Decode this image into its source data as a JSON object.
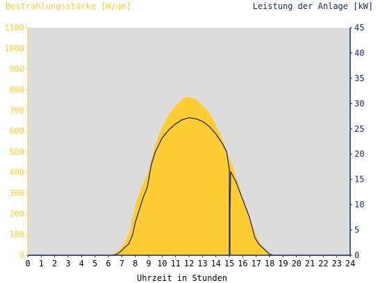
{
  "chart_data": {
    "type": "area",
    "y_left_label": "Bestrahlungsstärke [W/qm]",
    "y_right_label": "Leistung der Anlage [kW]",
    "xlabel": "Uhrzeit in Stunden",
    "xlim": [
      0,
      24
    ],
    "ylim_left": [
      0,
      1100
    ],
    "ylim_right": [
      0,
      45
    ],
    "x_ticks": [
      "0",
      "1",
      "2",
      "3",
      "4",
      "5",
      "6",
      "7",
      "8",
      "9",
      "10",
      "11",
      "12",
      "13",
      "14",
      "15",
      "16",
      "17",
      "18",
      "19",
      "20",
      "21",
      "22",
      "23",
      "24"
    ],
    "y_left_ticks": [
      "0",
      "100",
      "200",
      "300",
      "400",
      "500",
      "600",
      "700",
      "800",
      "900",
      "1000",
      "1100"
    ],
    "y_right_ticks": [
      "0",
      "5",
      "10",
      "15",
      "20",
      "25",
      "30",
      "35",
      "40",
      "45"
    ],
    "colors": {
      "plot_background": "#dcdcdc",
      "irradiance_fill": "#ffcc33",
      "power_line": "#1a2a6c",
      "left_axis": "#ffcc33",
      "right_axis": "#1a2a6c"
    },
    "series": [
      {
        "name": "Bestrahlungsstärke [W/qm]",
        "axis": "left",
        "kind": "area",
        "x": [
          0,
          6.0,
          6.5,
          7.0,
          7.3,
          7.6,
          7.8,
          8.0,
          8.3,
          8.6,
          8.9,
          9.2,
          9.5,
          10.0,
          10.5,
          11.0,
          11.5,
          11.8,
          12.0,
          12.3,
          12.6,
          13.0,
          13.5,
          14.0,
          14.5,
          15.0,
          15.3,
          15.6,
          16.0,
          16.4,
          16.8,
          17.1,
          17.4,
          17.7,
          18.0,
          18.3,
          24
        ],
        "y": [
          0,
          0,
          10,
          40,
          70,
          120,
          180,
          240,
          300,
          350,
          390,
          460,
          540,
          620,
          680,
          725,
          755,
          765,
          765,
          760,
          750,
          725,
          690,
          630,
          560,
          470,
          420,
          360,
          280,
          210,
          130,
          80,
          50,
          25,
          10,
          0,
          0
        ]
      },
      {
        "name": "Leistung der Anlage [kW]",
        "axis": "right",
        "kind": "line",
        "x": [
          0,
          6.3,
          6.6,
          6.9,
          7.2,
          7.5,
          7.8,
          8.0,
          8.3,
          8.6,
          8.9,
          9.2,
          9.5,
          10.0,
          10.5,
          11.0,
          11.5,
          12.0,
          12.5,
          13.0,
          13.5,
          14.0,
          14.5,
          14.8,
          15.0,
          15.0,
          15.05,
          15.05,
          15.1,
          15.2,
          15.5,
          16.0,
          16.5,
          16.9,
          17.2,
          17.6,
          18.0,
          18.3,
          24
        ],
        "y": [
          0,
          0,
          0.2,
          0.7,
          1.5,
          2.2,
          4.0,
          6.5,
          9.0,
          11.5,
          13.5,
          18.0,
          20.5,
          23.2,
          24.8,
          26.0,
          26.8,
          27.2,
          27.0,
          26.5,
          25.5,
          24.0,
          22.0,
          20.5,
          17.0,
          0.2,
          0.2,
          9.0,
          16.5,
          16.0,
          14.5,
          11.0,
          7.5,
          3.5,
          2.2,
          1.2,
          0.2,
          0,
          0
        ]
      }
    ]
  }
}
